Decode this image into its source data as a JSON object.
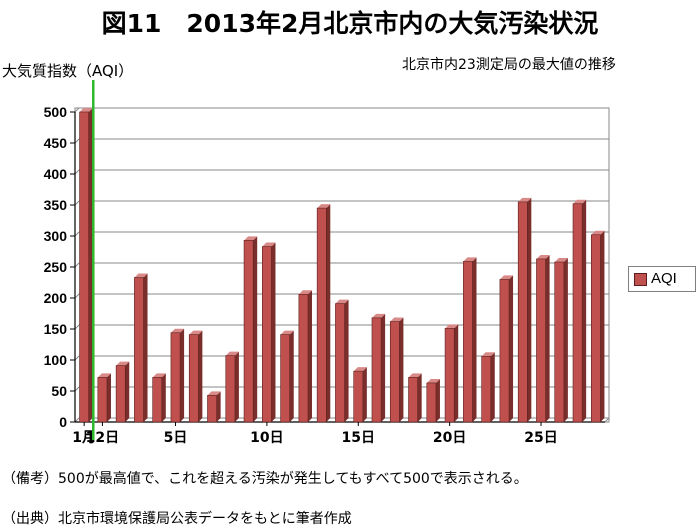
{
  "title": "図11　2013年2月北京市内の大気汚染状況",
  "subtitle": "北京市内23測定局の最大値の推移",
  "notes": {
    "remark": "（備考）500が最高値で、これを超える汚染が発生してもすべて500で表示される。",
    "source": "（出典）北京市環境保護局公表データをもとに筆者作成"
  },
  "colors": {
    "bar": "#c0504d",
    "bar_dark": "#7a2e2c",
    "marker": "#2eb82e",
    "grid": "#888888"
  },
  "chart_data": {
    "type": "bar",
    "ylabel": "大気質指数（AQI）",
    "xlabel": "",
    "ylim": [
      0,
      500
    ],
    "y_ticks": [
      0,
      50,
      100,
      150,
      200,
      250,
      300,
      350,
      400,
      450,
      500
    ],
    "x_tick_labels": [
      {
        "day": 1,
        "label": "1月"
      },
      {
        "day": 2,
        "label": "12日"
      },
      {
        "day": 6,
        "label": "5日"
      },
      {
        "day": 11,
        "label": "10日"
      },
      {
        "day": 16,
        "label": "15日"
      },
      {
        "day": 21,
        "label": "20日"
      },
      {
        "day": 26,
        "label": "25日"
      }
    ],
    "marker_after_day": 1,
    "series": [
      {
        "name": "AQI",
        "values": [
          500,
          72,
          91,
          233,
          72,
          144,
          141,
          43,
          107,
          293,
          283,
          141,
          206,
          345,
          191,
          82,
          168,
          162,
          72,
          63,
          151,
          259,
          106,
          230,
          355,
          263,
          258,
          352,
          302
        ]
      }
    ],
    "legend": "right",
    "grid": true
  }
}
